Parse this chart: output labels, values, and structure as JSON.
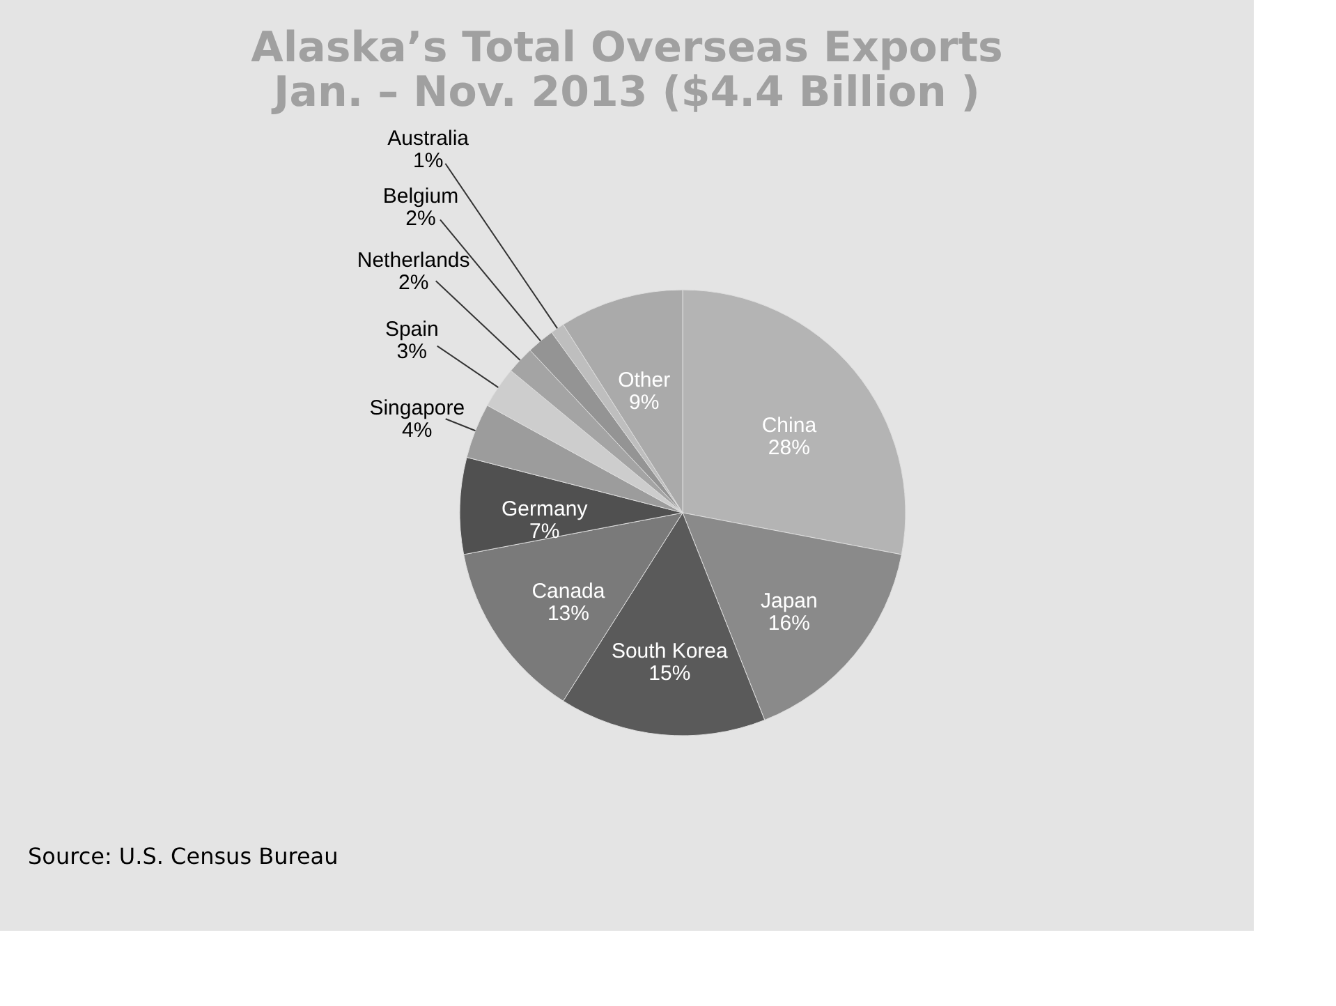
{
  "chart_data": {
    "type": "pie",
    "title": [
      "Alaska’s Total Overseas Exports",
      "Jan. – Nov. 2013 ($4.4 Billion )"
    ],
    "categories": [
      "China",
      "Japan",
      "South Korea",
      "Canada",
      "Germany",
      "Singapore",
      "Spain",
      "Netherlands",
      "Belgium",
      "Australia",
      "Other"
    ],
    "values": [
      28,
      16,
      15,
      13,
      7,
      4,
      3,
      2,
      2,
      1,
      9
    ],
    "value_labels": [
      "28%",
      "16%",
      "15%",
      "13%",
      "7%",
      "4%",
      "3%",
      "2%",
      "2%",
      "1%",
      "9%"
    ],
    "colors": [
      "#b4b4b4",
      "#8a8a8a",
      "#5a5a5a",
      "#7a7a7a",
      "#505050",
      "#9c9c9c",
      "#cdcdcd",
      "#a4a4a4",
      "#949494",
      "#bebebe",
      "#aaaaaa"
    ],
    "annotations": [
      "Source: U.S. Census Bureau"
    ]
  }
}
